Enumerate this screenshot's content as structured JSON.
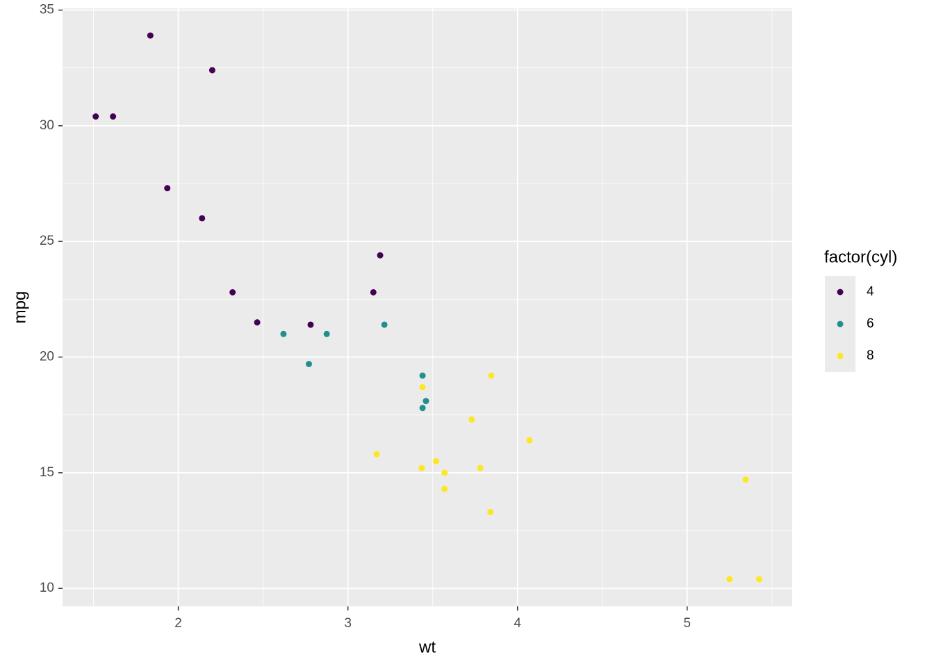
{
  "chart_data": {
    "type": "scatter",
    "x_label": "wt",
    "y_label": "mpg",
    "legend_title": "factor(cyl)",
    "series": [
      {
        "name": "4",
        "color": "#440154",
        "x": [
          2.32,
          3.19,
          3.15,
          2.2,
          1.615,
          1.835,
          2.465,
          1.935,
          2.14,
          1.513,
          2.78
        ],
        "values": [
          22.8,
          24.4,
          22.8,
          32.4,
          30.4,
          33.9,
          21.5,
          27.3,
          26.0,
          30.4,
          21.4
        ]
      },
      {
        "name": "6",
        "color": "#21908C",
        "x": [
          2.62,
          2.875,
          3.215,
          3.46,
          3.44,
          3.44,
          2.77
        ],
        "values": [
          21.0,
          21.0,
          21.4,
          18.1,
          19.2,
          17.8,
          19.7
        ]
      },
      {
        "name": "8",
        "color": "#FDE725",
        "x": [
          3.44,
          3.57,
          4.07,
          3.73,
          3.78,
          5.25,
          5.424,
          5.345,
          3.52,
          3.435,
          3.84,
          3.845,
          3.17,
          3.57
        ],
        "values": [
          18.7,
          14.3,
          16.4,
          17.3,
          15.2,
          10.4,
          10.4,
          14.7,
          15.5,
          15.2,
          13.3,
          19.2,
          15.8,
          15.0
        ]
      }
    ],
    "xlim": [
      1.3174,
      5.6196
    ],
    "ylim": [
      9.225,
      35.075
    ],
    "xticks": [
      2,
      3,
      4,
      5
    ],
    "yticks": [
      10,
      15,
      20,
      25,
      30,
      35
    ],
    "xminor": [
      1.5,
      2.5,
      3.5,
      4.5,
      5.5
    ],
    "yminor": [
      12.5,
      17.5,
      22.5,
      27.5,
      32.5
    ],
    "grid": true,
    "legend_position": "right"
  }
}
